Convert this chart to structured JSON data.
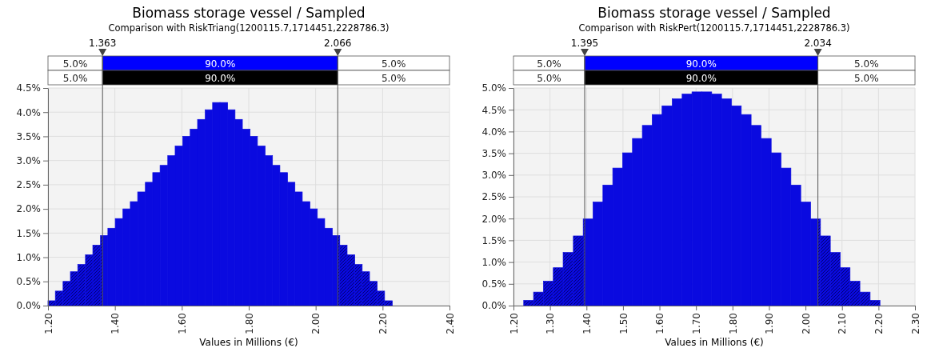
{
  "chart_data": [
    {
      "type": "histogram",
      "title": "Biomass storage vessel / Sampled",
      "subtitle": "Comparison with RiskTriang(1200115.7,1714451,2228786.3)",
      "xlabel": "Values in Millions (€)",
      "color": "#0a0ae0",
      "grid": true,
      "bins": [
        1.2,
        1.222,
        1.245,
        1.267,
        1.289,
        1.312,
        1.334,
        1.357,
        1.379,
        1.401,
        1.424,
        1.446,
        1.468,
        1.491,
        1.513,
        1.535,
        1.558,
        1.58,
        1.603,
        1.625,
        1.647,
        1.67,
        1.692,
        1.714,
        1.737,
        1.759,
        1.781,
        1.804,
        1.826,
        1.849,
        1.871,
        1.893,
        1.916,
        1.938,
        1.96,
        1.983,
        2.005,
        2.027,
        2.05,
        2.072,
        2.094,
        2.117,
        2.139,
        2.161,
        2.184,
        2.206,
        2.229
      ],
      "values": [
        0.1,
        0.3,
        0.5,
        0.7,
        0.85,
        1.05,
        1.25,
        1.45,
        1.6,
        1.8,
        2.0,
        2.15,
        2.35,
        2.55,
        2.75,
        2.9,
        3.1,
        3.3,
        3.5,
        3.65,
        3.85,
        4.05,
        4.2,
        4.2,
        4.05,
        3.85,
        3.65,
        3.5,
        3.3,
        3.1,
        2.9,
        2.75,
        2.55,
        2.35,
        2.15,
        2.0,
        1.8,
        1.6,
        1.45,
        1.25,
        1.05,
        0.85,
        0.7,
        0.5,
        0.3,
        0.1
      ],
      "xlim": [
        1.2,
        2.4
      ],
      "xticks": [
        {
          "value": 1.2,
          "label": "1.20"
        },
        {
          "value": 1.4,
          "label": "1.40"
        },
        {
          "value": 1.6,
          "label": "1.60"
        },
        {
          "value": 1.8,
          "label": "1.80"
        },
        {
          "value": 2.0,
          "label": "2.00"
        },
        {
          "value": 2.2,
          "label": "2.20"
        },
        {
          "value": 2.4,
          "label": "2.40"
        }
      ],
      "ylim": [
        0,
        4.5
      ],
      "yticks": [
        {
          "value": 0,
          "label": "0.0%"
        },
        {
          "value": 0.5,
          "label": "0.5%"
        },
        {
          "value": 1,
          "label": "1.0%"
        },
        {
          "value": 1.5,
          "label": "1.5%"
        },
        {
          "value": 2,
          "label": "2.0%"
        },
        {
          "value": 2.5,
          "label": "2.5%"
        },
        {
          "value": 3,
          "label": "3.0%"
        },
        {
          "value": 3.5,
          "label": "3.5%"
        },
        {
          "value": 4,
          "label": "4.0%"
        },
        {
          "value": 4.5,
          "label": "4.5%"
        }
      ],
      "ref_lines": [
        {
          "axis": "x",
          "value": 1.363,
          "label": "1.363"
        },
        {
          "axis": "x",
          "value": 2.066,
          "label": "2.066"
        }
      ],
      "annotations": [
        "5.0%",
        "90.0%",
        "5.0%",
        "5.0%",
        "90.0%",
        "5.0%"
      ]
    },
    {
      "type": "histogram",
      "title": "Biomass storage vessel / Sampled",
      "subtitle": "Comparison with RiskPert(1200115.7,1714451,2228786.3)",
      "xlabel": "Values in Millions (€)",
      "color": "#0a0ae0",
      "grid": true,
      "bins": [
        1.228,
        1.255,
        1.282,
        1.309,
        1.336,
        1.364,
        1.391,
        1.418,
        1.445,
        1.472,
        1.499,
        1.526,
        1.553,
        1.58,
        1.607,
        1.635,
        1.662,
        1.689,
        1.716,
        1.743,
        1.77,
        1.797,
        1.824,
        1.851,
        1.878,
        1.906,
        1.933,
        1.96,
        1.987,
        2.014,
        2.041,
        2.068,
        2.095,
        2.122,
        2.149,
        2.177,
        2.204
      ],
      "values": [
        0.12,
        0.31,
        0.56,
        0.87,
        1.22,
        1.6,
        1.99,
        2.38,
        2.77,
        3.16,
        3.51,
        3.84,
        4.14,
        4.39,
        4.59,
        4.75,
        4.86,
        4.91,
        4.91,
        4.86,
        4.75,
        4.59,
        4.39,
        4.14,
        3.84,
        3.51,
        3.16,
        2.77,
        2.38,
        1.99,
        1.6,
        1.22,
        0.87,
        0.56,
        0.31,
        0.12
      ],
      "xlim": [
        1.2,
        2.3
      ],
      "xticks": [
        {
          "value": 1.2,
          "label": "1.20"
        },
        {
          "value": 1.3,
          "label": "1.30"
        },
        {
          "value": 1.4,
          "label": "1.40"
        },
        {
          "value": 1.5,
          "label": "1.50"
        },
        {
          "value": 1.6,
          "label": "1.60"
        },
        {
          "value": 1.7,
          "label": "1.70"
        },
        {
          "value": 1.8,
          "label": "1.80"
        },
        {
          "value": 1.9,
          "label": "1.90"
        },
        {
          "value": 2.0,
          "label": "2.00"
        },
        {
          "value": 2.1,
          "label": "2.10"
        },
        {
          "value": 2.2,
          "label": "2.20"
        },
        {
          "value": 2.3,
          "label": "2.30"
        }
      ],
      "ylim": [
        0,
        5
      ],
      "yticks": [
        {
          "value": 0,
          "label": "0.0%"
        },
        {
          "value": 0.5,
          "label": "0.5%"
        },
        {
          "value": 1,
          "label": "1.0%"
        },
        {
          "value": 1.5,
          "label": "1.5%"
        },
        {
          "value": 2,
          "label": "2.0%"
        },
        {
          "value": 2.5,
          "label": "2.5%"
        },
        {
          "value": 3,
          "label": "3.0%"
        },
        {
          "value": 3.5,
          "label": "3.5%"
        },
        {
          "value": 4,
          "label": "4.0%"
        },
        {
          "value": 4.5,
          "label": "4.5%"
        },
        {
          "value": 5,
          "label": "5.0%"
        }
      ],
      "ref_lines": [
        {
          "axis": "x",
          "value": 1.395,
          "label": "1.395"
        },
        {
          "axis": "x",
          "value": 2.034,
          "label": "2.034"
        }
      ],
      "annotations": [
        "5.0%",
        "90.0%",
        "5.0%",
        "5.0%",
        "90.0%",
        "5.0%"
      ]
    }
  ]
}
